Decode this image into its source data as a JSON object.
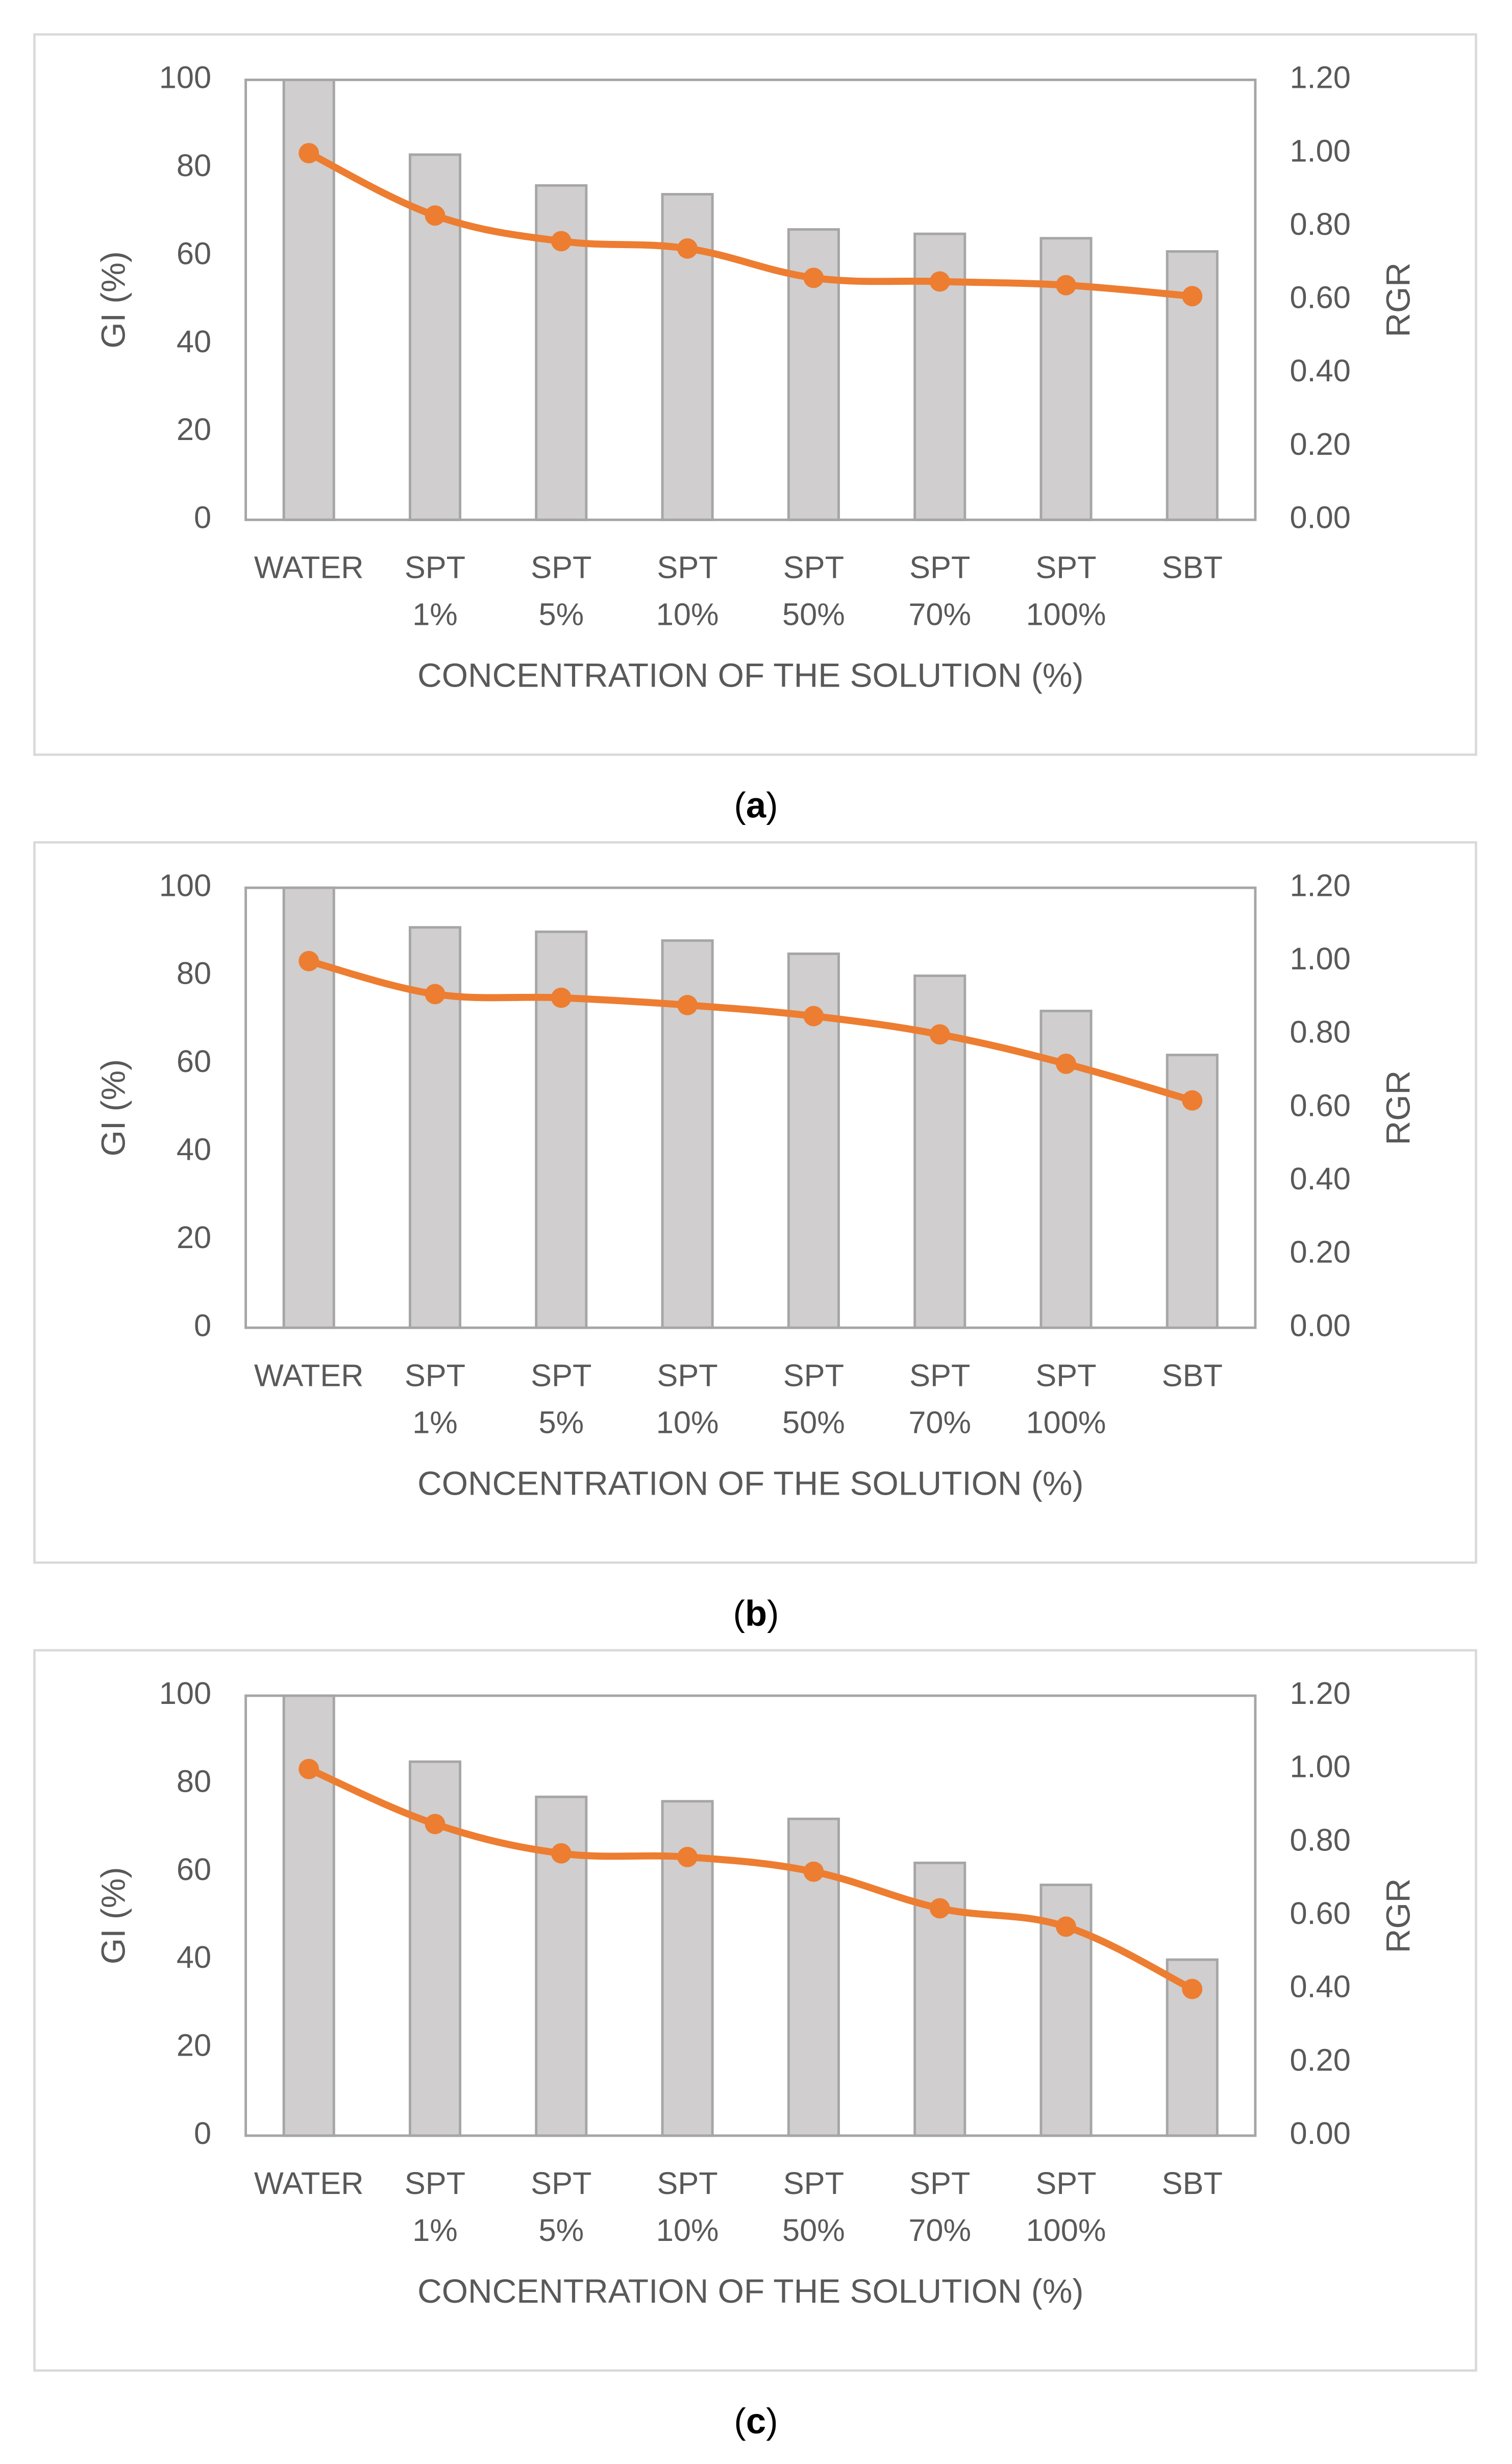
{
  "colors": {
    "bar_fill": "#d0cece",
    "bar_stroke": "#a6a6a6",
    "line": "#ed7d31",
    "text": "#595959",
    "frame": "#d9d9d9",
    "caption": "#000000"
  },
  "chart_data": [
    {
      "panel": "a",
      "caption_letter": "a",
      "type": "bar",
      "xlabel": "CONCENTRATION OF THE SOLUTION (%)",
      "ylabel": "GI (%)",
      "y2label": "RGR",
      "categories": [
        [
          "WATER"
        ],
        [
          "SPT",
          "1%"
        ],
        [
          "SPT",
          "5%"
        ],
        [
          "SPT",
          "10%"
        ],
        [
          "SPT",
          "50%"
        ],
        [
          "SPT",
          "70%"
        ],
        [
          "SPT",
          "100%"
        ],
        [
          "SBT"
        ]
      ],
      "ylim": [
        0,
        100
      ],
      "y2lim": [
        0,
        1.2
      ],
      "yticks": [
        "0",
        "20",
        "40",
        "60",
        "80",
        "100"
      ],
      "y2ticks": [
        "0.00",
        "0.20",
        "0.40",
        "0.60",
        "0.80",
        "1.00",
        "1.20"
      ],
      "grid": false,
      "series": [
        {
          "kind": "bar",
          "axis": "left",
          "values": [
            100,
            83,
            76,
            74,
            66,
            65,
            64,
            61
          ]
        },
        {
          "kind": "line",
          "axis": "right",
          "values": [
            1.0,
            0.83,
            0.76,
            0.74,
            0.66,
            0.65,
            0.64,
            0.61
          ]
        }
      ]
    },
    {
      "panel": "b",
      "caption_letter": "b",
      "type": "bar",
      "xlabel": "CONCENTRATION OF THE SOLUTION (%)",
      "ylabel": "GI (%)",
      "y2label": "RGR",
      "categories": [
        [
          "WATER"
        ],
        [
          "SPT",
          "1%"
        ],
        [
          "SPT",
          "5%"
        ],
        [
          "SPT",
          "10%"
        ],
        [
          "SPT",
          "50%"
        ],
        [
          "SPT",
          "70%"
        ],
        [
          "SPT",
          "100%"
        ],
        [
          "SBT"
        ]
      ],
      "ylim": [
        0,
        100
      ],
      "y2lim": [
        0,
        1.2
      ],
      "yticks": [
        "0",
        "20",
        "40",
        "60",
        "80",
        "100"
      ],
      "y2ticks": [
        "0.00",
        "0.20",
        "0.40",
        "0.60",
        "0.80",
        "1.00",
        "1.20"
      ],
      "grid": false,
      "series": [
        {
          "kind": "bar",
          "axis": "left",
          "values": [
            100,
            91,
            90,
            88,
            85,
            80,
            72,
            62
          ]
        },
        {
          "kind": "line",
          "axis": "right",
          "values": [
            1.0,
            0.91,
            0.9,
            0.88,
            0.85,
            0.8,
            0.72,
            0.62
          ]
        }
      ]
    },
    {
      "panel": "c",
      "caption_letter": "c",
      "type": "bar",
      "xlabel": "CONCENTRATION OF THE SOLUTION (%)",
      "ylabel": "GI (%)",
      "y2label": "RGR",
      "categories": [
        [
          "WATER"
        ],
        [
          "SPT",
          "1%"
        ],
        [
          "SPT",
          "5%"
        ],
        [
          "SPT",
          "10%"
        ],
        [
          "SPT",
          "50%"
        ],
        [
          "SPT",
          "70%"
        ],
        [
          "SPT",
          "100%"
        ],
        [
          "SBT"
        ]
      ],
      "ylim": [
        0,
        100
      ],
      "y2lim": [
        0,
        1.2
      ],
      "yticks": [
        "0",
        "20",
        "40",
        "60",
        "80",
        "100"
      ],
      "y2ticks": [
        "0.00",
        "0.20",
        "0.40",
        "0.60",
        "0.80",
        "1.00",
        "1.20"
      ],
      "grid": false,
      "series": [
        {
          "kind": "bar",
          "axis": "left",
          "values": [
            100,
            85,
            77,
            76,
            72,
            62,
            57,
            40
          ]
        },
        {
          "kind": "line",
          "axis": "right",
          "values": [
            1.0,
            0.85,
            0.77,
            0.76,
            0.72,
            0.62,
            0.57,
            0.4
          ]
        }
      ]
    }
  ]
}
